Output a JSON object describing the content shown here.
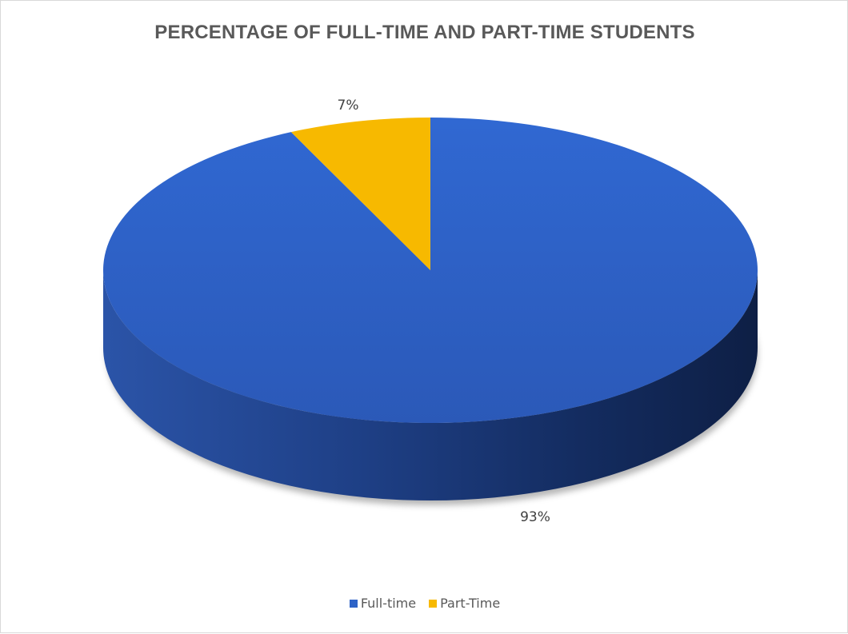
{
  "chart_data": {
    "type": "pie",
    "title": "PERCENTAGE OF FULL-TIME AND PART-TIME STUDENTS",
    "style": "3d",
    "slices": [
      {
        "name": "Full-time",
        "value": 93,
        "label": "93%",
        "color": "#2e63c7"
      },
      {
        "name": "Part-Time",
        "value": 7,
        "label": "7%",
        "color": "#f7b900"
      }
    ],
    "legend_position": "bottom"
  }
}
